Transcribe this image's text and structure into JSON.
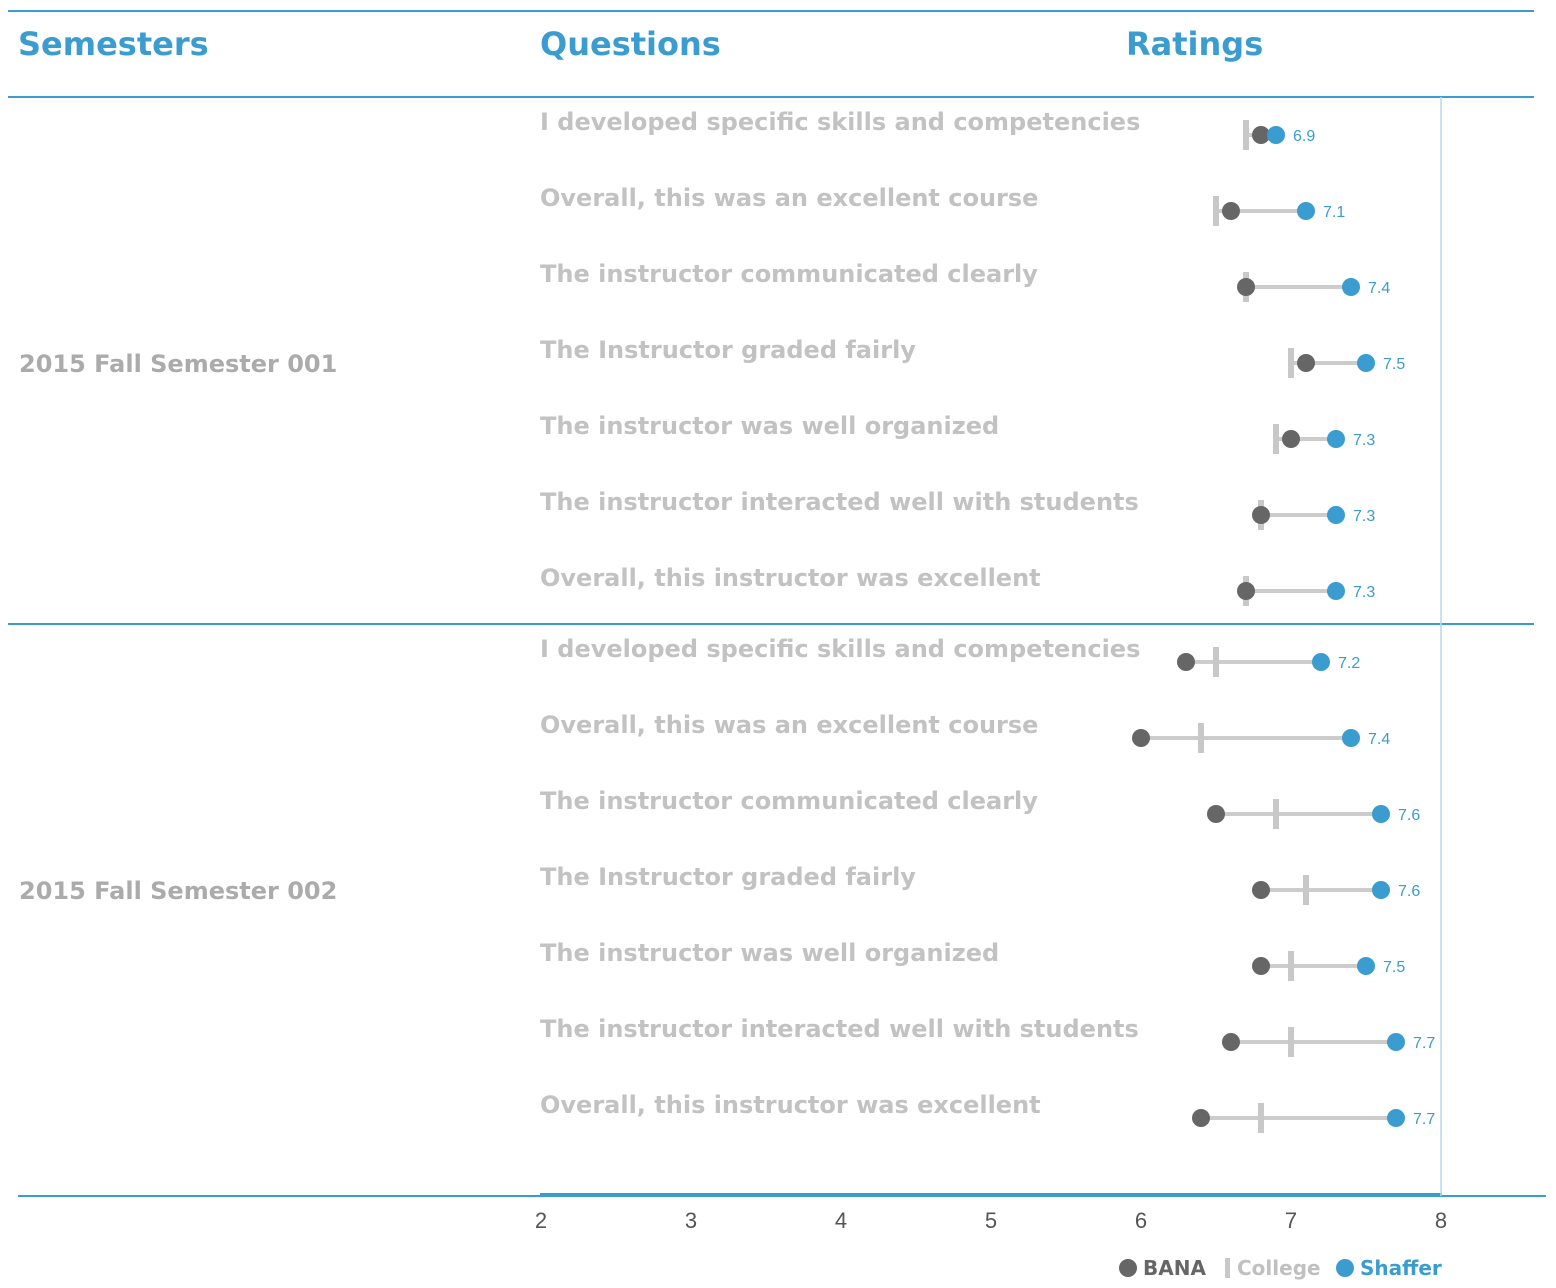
{
  "headers": {
    "semesters": "Semesters",
    "questions": "Questions",
    "ratings": "Ratings"
  },
  "colors": {
    "accent": "#3a9ccf",
    "bana": "#666666",
    "college": "#c8c8c8",
    "shaffer": "#3a9ccf",
    "question_text": "#c2c2c2",
    "semester_text": "#ababab"
  },
  "legend": {
    "bana": "BANA",
    "college": "College",
    "shaffer": "Shaffer"
  },
  "chart_data": {
    "type": "dumbbell",
    "title": "",
    "xlabel": "",
    "ylabel": "",
    "xlim": [
      2,
      8
    ],
    "xticks": [
      "2",
      "3",
      "4",
      "5",
      "6",
      "7",
      "8"
    ],
    "legend_position": "bottom-right",
    "groups": [
      {
        "semester": "2015 Fall Semester 001",
        "rows": [
          {
            "question": "I developed specific skills and competencies",
            "bana": 6.8,
            "college": 6.7,
            "shaffer": 6.9,
            "label": "6.9"
          },
          {
            "question": "Overall, this was an excellent course",
            "bana": 6.6,
            "college": 6.5,
            "shaffer": 7.1,
            "label": "7.1"
          },
          {
            "question": "The instructor communicated clearly",
            "bana": 6.7,
            "college": 6.7,
            "shaffer": 7.4,
            "label": "7.4"
          },
          {
            "question": "The Instructor graded fairly",
            "bana": 7.1,
            "college": 7.0,
            "shaffer": 7.5,
            "label": "7.5"
          },
          {
            "question": "The instructor was well organized",
            "bana": 7.0,
            "college": 6.9,
            "shaffer": 7.3,
            "label": "7.3"
          },
          {
            "question": "The instructor interacted well with students",
            "bana": 6.8,
            "college": 6.8,
            "shaffer": 7.3,
            "label": "7.3"
          },
          {
            "question": "Overall, this instructor was excellent",
            "bana": 6.7,
            "college": 6.7,
            "shaffer": 7.3,
            "label": "7.3"
          }
        ]
      },
      {
        "semester": "2015 Fall Semester 002",
        "rows": [
          {
            "question": "I developed specific skills and competencies",
            "bana": 6.3,
            "college": 6.5,
            "shaffer": 7.2,
            "label": "7.2"
          },
          {
            "question": "Overall, this was an excellent course",
            "bana": 6.0,
            "college": 6.4,
            "shaffer": 7.4,
            "label": "7.4"
          },
          {
            "question": "The instructor communicated clearly",
            "bana": 6.5,
            "college": 6.9,
            "shaffer": 7.6,
            "label": "7.6"
          },
          {
            "question": "The Instructor graded fairly",
            "bana": 6.8,
            "college": 7.1,
            "shaffer": 7.6,
            "label": "7.6"
          },
          {
            "question": "The instructor was well organized",
            "bana": 6.8,
            "college": 7.0,
            "shaffer": 7.5,
            "label": "7.5"
          },
          {
            "question": "The instructor interacted well with students",
            "bana": 6.6,
            "college": 7.0,
            "shaffer": 7.7,
            "label": "7.7"
          },
          {
            "question": "Overall, this instructor was excellent",
            "bana": 6.4,
            "college": 6.8,
            "shaffer": 7.7,
            "label": "7.7"
          }
        ]
      }
    ]
  }
}
